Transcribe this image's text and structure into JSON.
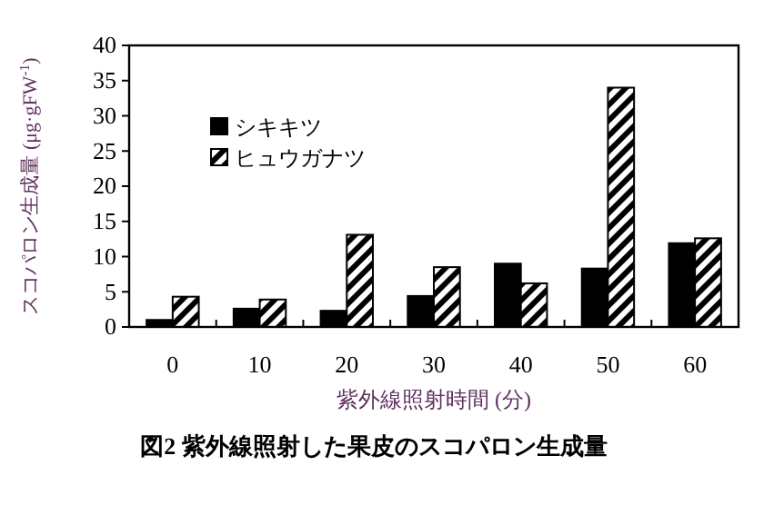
{
  "chart_data": {
    "type": "bar",
    "title": "図2  紫外線照射した果皮のスコパロン生成量",
    "xlabel": "紫外線照射時間 (分)",
    "ylabel": "スコパロン生成量 (μg·gFW$^{-1}$)",
    "categories": [
      "0",
      "10",
      "20",
      "30",
      "40",
      "50",
      "60"
    ],
    "series": [
      {
        "name": "シキキツ",
        "color": "#000000",
        "values": [
          1.0,
          2.6,
          2.3,
          4.4,
          9.0,
          8.3,
          11.9
        ]
      },
      {
        "name": "ヒュウガナツ",
        "color": "#000000",
        "values": [
          4.3,
          3.9,
          13.1,
          8.5,
          6.2,
          34.0,
          12.6
        ]
      }
    ],
    "ylim": [
      0,
      40
    ],
    "yticks": [
      0,
      5,
      10,
      15,
      20,
      25,
      30,
      35,
      40
    ],
    "legend": "top left",
    "grid": false
  }
}
